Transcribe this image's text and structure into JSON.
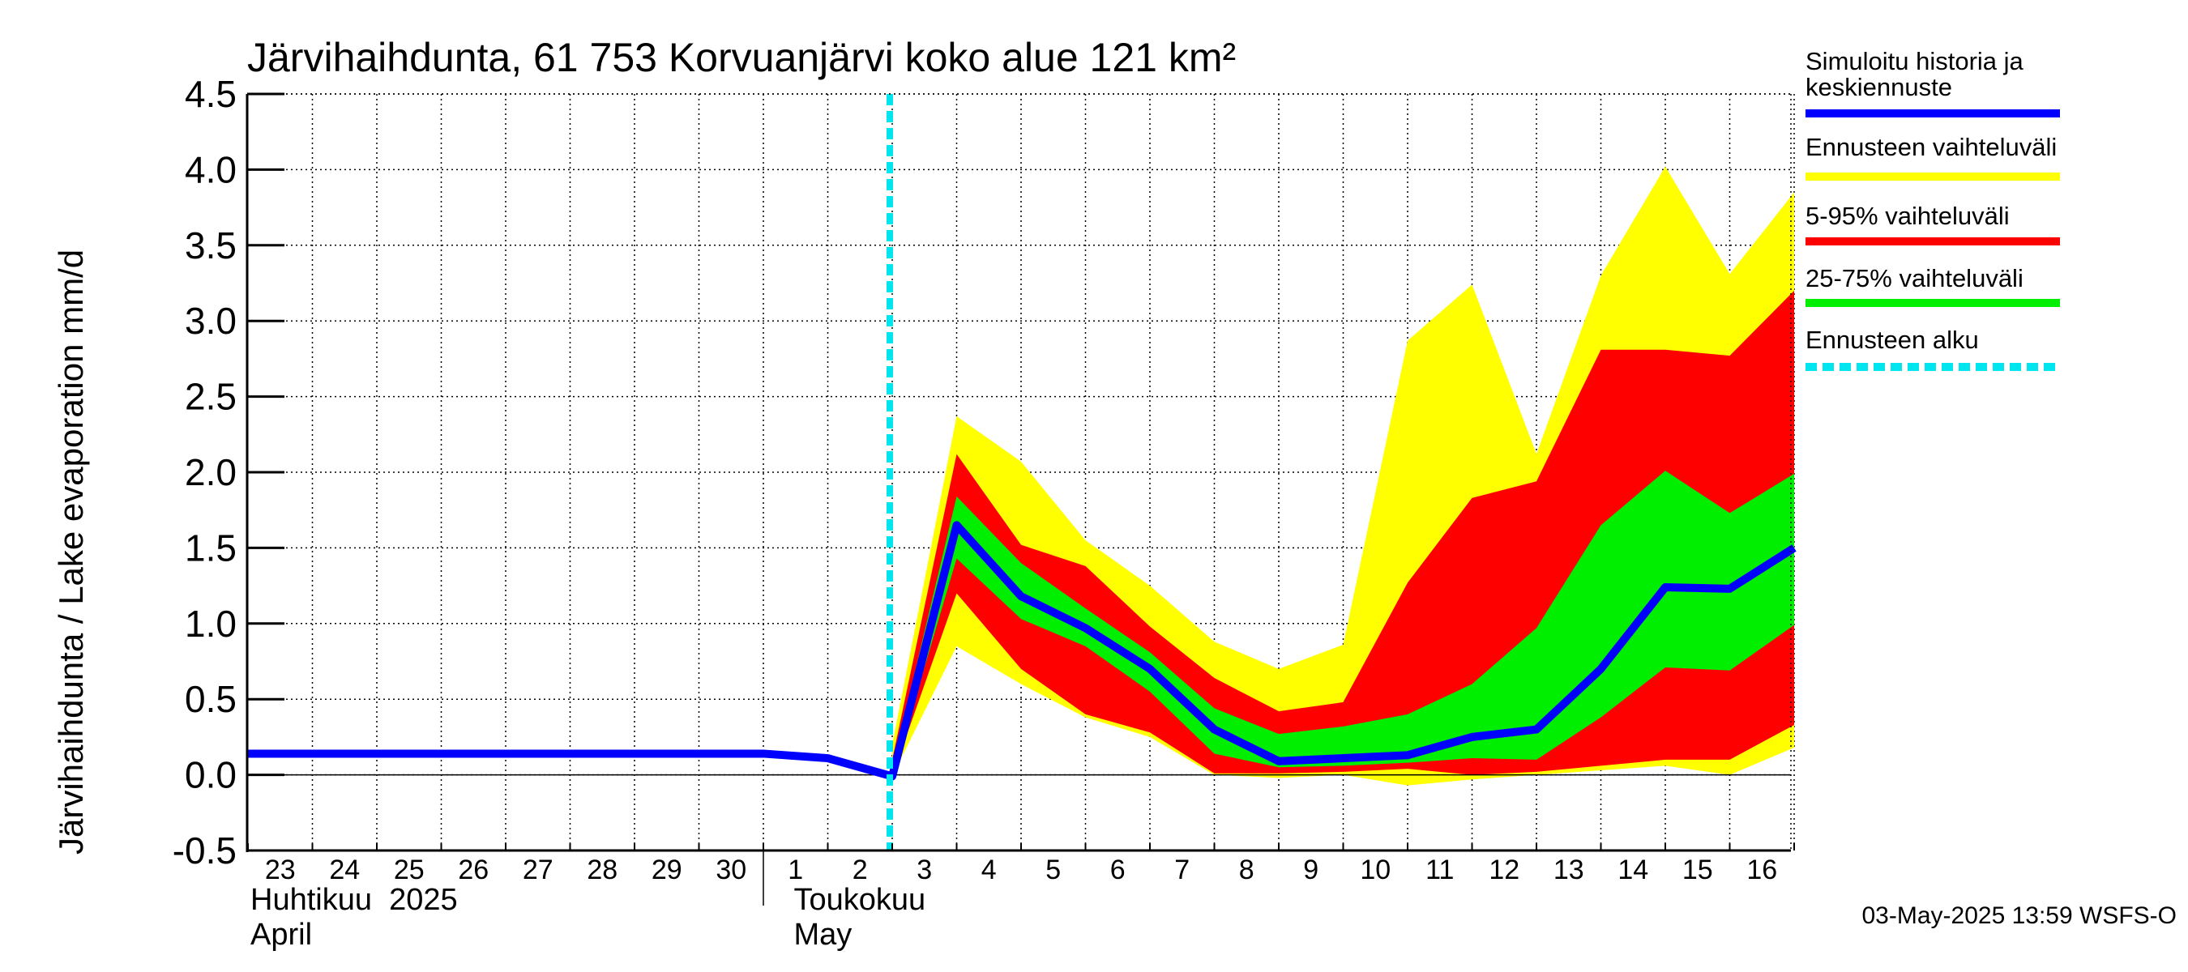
{
  "chart_data": {
    "type": "area",
    "title": "Järvihaihdunta, 61 753 Korvuanjärvi koko alue 121 km²",
    "ylabel": "Järvihaihdunta / Lake evaporation   mm/d",
    "ylim": [
      -0.5,
      4.5
    ],
    "yticks": [
      -0.5,
      0.0,
      0.5,
      1.0,
      1.5,
      2.0,
      2.5,
      3.0,
      3.5,
      4.0,
      4.5
    ],
    "ytick_labels": [
      "-0.5",
      "0.0",
      "0.5",
      "1.0",
      "1.5",
      "2.0",
      "2.5",
      "3.0",
      "3.5",
      "4.0",
      "4.5"
    ],
    "x_day_labels": [
      "23",
      "24",
      "25",
      "26",
      "27",
      "28",
      "29",
      "30",
      "1",
      "2",
      "3",
      "4",
      "5",
      "6",
      "7",
      "8",
      "9",
      "10",
      "11",
      "12",
      "13",
      "14",
      "15",
      "16"
    ],
    "x_start_date": "2025-04-23",
    "x_end_date": "2025-05-16",
    "months": [
      {
        "label_fi": "Huhtikuu  2025",
        "label_en": "April",
        "start_day_label": "23"
      },
      {
        "label_fi": "Toukokuu",
        "label_en": "May",
        "start_day_label": "2"
      }
    ],
    "forecast_start": "2025-05-03",
    "grid": true,
    "legend_position": "right",
    "series": [
      {
        "name": "Simuloitu historia ja\nkeskiennuste",
        "color": "#0000ff",
        "style": "line",
        "x": [
          "2025-04-23",
          "2025-04-24",
          "2025-04-25",
          "2025-04-26",
          "2025-04-27",
          "2025-04-28",
          "2025-04-29",
          "2025-04-30",
          "2025-05-01",
          "2025-05-02",
          "2025-05-03",
          "2025-05-04",
          "2025-05-05",
          "2025-05-06",
          "2025-05-07",
          "2025-05-08",
          "2025-05-09",
          "2025-05-10",
          "2025-05-11",
          "2025-05-12",
          "2025-05-13",
          "2025-05-14",
          "2025-05-15",
          "2025-05-16",
          "2025-05-17"
        ],
        "values": [
          0.14,
          0.14,
          0.14,
          0.14,
          0.14,
          0.14,
          0.14,
          0.14,
          0.14,
          0.11,
          -0.01,
          1.65,
          1.18,
          0.97,
          0.7,
          0.3,
          0.09,
          0.11,
          0.13,
          0.25,
          0.3,
          0.7,
          1.24,
          1.23,
          1.5
        ]
      },
      {
        "name": "Ennusteen vaihteluväli",
        "color": "#ffff00",
        "style": "band",
        "x": [
          "2025-05-03",
          "2025-05-04",
          "2025-05-05",
          "2025-05-06",
          "2025-05-07",
          "2025-05-08",
          "2025-05-09",
          "2025-05-10",
          "2025-05-11",
          "2025-05-12",
          "2025-05-13",
          "2025-05-14",
          "2025-05-15",
          "2025-05-16",
          "2025-05-17"
        ],
        "lower": [
          -0.01,
          0.85,
          0.6,
          0.38,
          0.25,
          0.0,
          -0.02,
          0.0,
          -0.07,
          -0.03,
          0.0,
          0.03,
          0.06,
          0.0,
          0.18
        ],
        "upper": [
          0.2,
          2.37,
          2.07,
          1.55,
          1.25,
          0.88,
          0.7,
          0.86,
          2.87,
          3.24,
          2.12,
          3.3,
          4.02,
          3.31,
          3.85
        ]
      },
      {
        "name": "5-95% vaihteluväli",
        "color": "#ff0000",
        "style": "band",
        "x": [
          "2025-05-03",
          "2025-05-04",
          "2025-05-05",
          "2025-05-06",
          "2025-05-07",
          "2025-05-08",
          "2025-05-09",
          "2025-05-10",
          "2025-05-11",
          "2025-05-12",
          "2025-05-13",
          "2025-05-14",
          "2025-05-15",
          "2025-05-16",
          "2025-05-17"
        ],
        "lower": [
          -0.01,
          1.2,
          0.7,
          0.4,
          0.28,
          0.01,
          0.01,
          0.02,
          0.04,
          0.0,
          0.02,
          0.06,
          0.1,
          0.1,
          0.33
        ],
        "upper": [
          0.1,
          2.12,
          1.52,
          1.38,
          0.98,
          0.64,
          0.42,
          0.48,
          1.27,
          1.83,
          1.94,
          2.81,
          2.81,
          2.77,
          3.2
        ]
      },
      {
        "name": "25-75% vaihteluväli",
        "color": "#00ee00",
        "style": "band",
        "x": [
          "2025-05-03",
          "2025-05-04",
          "2025-05-05",
          "2025-05-06",
          "2025-05-07",
          "2025-05-08",
          "2025-05-09",
          "2025-05-10",
          "2025-05-11",
          "2025-05-12",
          "2025-05-13",
          "2025-05-14",
          "2025-05-15",
          "2025-05-16",
          "2025-05-17"
        ],
        "lower": [
          -0.01,
          1.43,
          1.03,
          0.85,
          0.55,
          0.14,
          0.05,
          0.06,
          0.08,
          0.11,
          0.1,
          0.38,
          0.71,
          0.69,
          0.99
        ],
        "upper": [
          0.05,
          1.84,
          1.4,
          1.1,
          0.81,
          0.44,
          0.27,
          0.32,
          0.4,
          0.6,
          0.97,
          1.65,
          2.01,
          1.73,
          1.99
        ]
      },
      {
        "name": "Ennusteen alku",
        "color": "#00e5ee",
        "style": "dashed-vertical-line"
      }
    ]
  },
  "footer": {
    "timestamp": "03-May-2025 13:59 WSFS-O"
  }
}
